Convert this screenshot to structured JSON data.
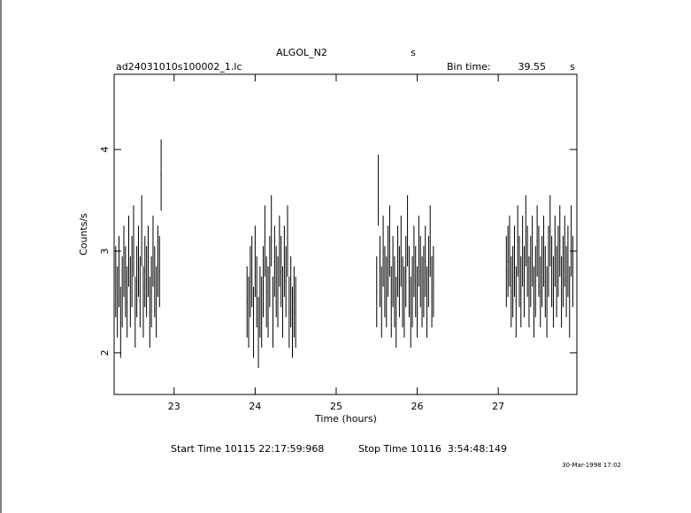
{
  "chart_data": {
    "type": "errorbar",
    "title": "ALGOL_N2",
    "title_unit": "s",
    "file": "ad24031010s100002_1.lc",
    "bin_label": "Bin time:",
    "bin_time": 39.55,
    "bin_unit": "s",
    "xlabel": "Time (hours)",
    "ylabel": "Counts/s",
    "start_time": "Start Time 10115 22:17:59:968",
    "stop_time": "Stop Time 10116  3:54:48:149",
    "date": "30-Mar-1998 17:02",
    "color": "#000000",
    "xlim": [
      22.26,
      27.97
    ],
    "ylim": [
      1.59,
      4.74
    ],
    "xticks": [
      23,
      24,
      25,
      26,
      27
    ],
    "yticks": [
      2,
      3,
      4
    ],
    "yerr": 0.35,
    "x": [
      22.28,
      22.3,
      22.32,
      22.34,
      22.36,
      22.38,
      22.4,
      22.42,
      22.44,
      22.46,
      22.48,
      22.5,
      22.52,
      22.54,
      22.56,
      22.58,
      22.6,
      22.62,
      22.64,
      22.66,
      22.68,
      22.7,
      22.72,
      22.74,
      22.76,
      22.78,
      22.8,
      22.82,
      22.84,
      23.9,
      23.92,
      23.94,
      23.96,
      23.98,
      24.0,
      24.02,
      24.04,
      24.06,
      24.08,
      24.1,
      24.12,
      24.14,
      24.16,
      24.18,
      24.2,
      24.22,
      24.24,
      24.26,
      24.28,
      24.3,
      24.32,
      24.34,
      24.36,
      24.38,
      24.4,
      24.42,
      24.44,
      24.46,
      24.48,
      24.5,
      25.5,
      25.52,
      25.54,
      25.56,
      25.58,
      25.6,
      25.62,
      25.64,
      25.66,
      25.68,
      25.7,
      25.72,
      25.74,
      25.76,
      25.78,
      25.8,
      25.82,
      25.84,
      25.86,
      25.88,
      25.9,
      25.92,
      25.94,
      25.96,
      25.98,
      26.0,
      26.02,
      26.04,
      26.06,
      26.08,
      26.1,
      26.12,
      26.14,
      26.16,
      26.18,
      26.2,
      27.1,
      27.12,
      27.14,
      27.16,
      27.18,
      27.2,
      27.22,
      27.24,
      27.26,
      27.28,
      27.3,
      27.32,
      27.34,
      27.36,
      27.38,
      27.4,
      27.42,
      27.44,
      27.46,
      27.48,
      27.5,
      27.52,
      27.54,
      27.56,
      27.58,
      27.6,
      27.62,
      27.64,
      27.66,
      27.68,
      27.7,
      27.72,
      27.74,
      27.76,
      27.78,
      27.8,
      27.82,
      27.84,
      27.86,
      27.88,
      27.9,
      27.92
    ],
    "values": [
      2.7,
      2.5,
      2.8,
      2.3,
      2.6,
      2.9,
      2.7,
      2.5,
      3.0,
      2.6,
      2.8,
      3.1,
      2.4,
      2.7,
      2.9,
      2.6,
      3.2,
      2.5,
      2.8,
      2.7,
      2.9,
      2.4,
      2.6,
      3.0,
      2.7,
      2.5,
      2.9,
      2.8,
      3.75,
      2.5,
      2.4,
      2.7,
      2.8,
      2.3,
      2.9,
      2.6,
      2.2,
      2.5,
      2.4,
      2.7,
      3.1,
      2.6,
      2.5,
      2.8,
      3.2,
      2.4,
      2.9,
      2.7,
      2.6,
      3.0,
      2.8,
      2.5,
      2.9,
      2.7,
      3.1,
      2.4,
      2.6,
      2.3,
      2.5,
      2.4,
      2.6,
      3.6,
      2.8,
      2.5,
      3.0,
      2.7,
      2.6,
      2.9,
      3.1,
      2.5,
      2.8,
      2.6,
      2.4,
      2.9,
      2.7,
      3.0,
      2.6,
      2.5,
      2.8,
      3.2,
      2.7,
      2.4,
      2.6,
      2.9,
      2.7,
      2.5,
      3.0,
      2.8,
      2.6,
      2.7,
      2.9,
      2.5,
      2.8,
      3.1,
      2.6,
      2.7,
      2.8,
      2.9,
      3.0,
      2.6,
      2.7,
      2.9,
      2.5,
      3.1,
      2.8,
      2.6,
      3.0,
      2.7,
      3.2,
      2.9,
      2.6,
      2.8,
      3.0,
      2.5,
      2.7,
      3.1,
      2.9,
      2.6,
      2.8,
      3.0,
      2.7,
      2.5,
      2.9,
      3.2,
      2.8,
      2.6,
      3.0,
      2.7,
      2.9,
      3.1,
      2.6,
      2.8,
      3.0,
      2.7,
      2.9,
      2.5,
      3.1,
      2.8
    ]
  }
}
